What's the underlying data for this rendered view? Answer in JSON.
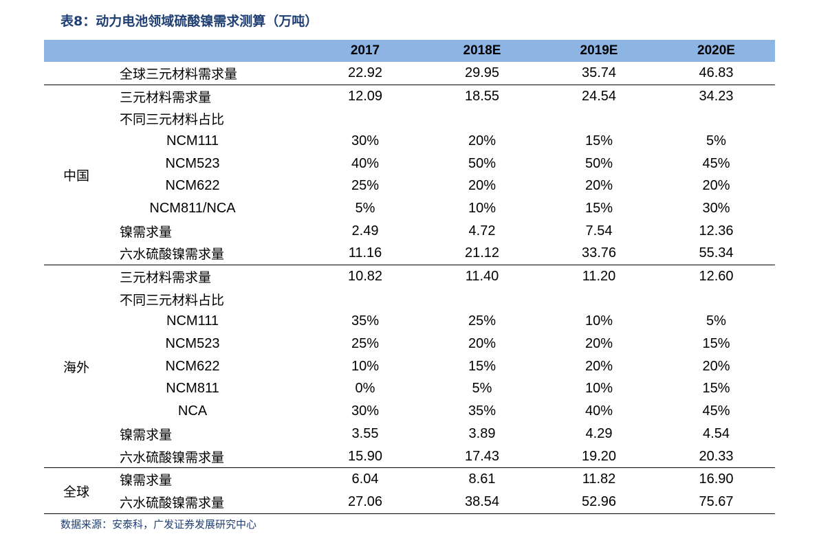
{
  "title": "表8：动力电池领域硫酸镍需求测算（万吨）",
  "headers": [
    "",
    "",
    "2017",
    "2018E",
    "2019E",
    "2020E"
  ],
  "rows": {
    "global_total": {
      "label": "全球三元材料需求量",
      "values": [
        "22.92",
        "29.95",
        "35.74",
        "46.83"
      ]
    },
    "china": {
      "group": "中国",
      "demand": {
        "label": "三元材料需求量",
        "values": [
          "12.09",
          "18.55",
          "24.54",
          "34.23"
        ]
      },
      "share_label": "不同三元材料占比",
      "ncm111": {
        "label": "NCM111",
        "values": [
          "30%",
          "20%",
          "15%",
          "5%"
        ]
      },
      "ncm523": {
        "label": "NCM523",
        "values": [
          "40%",
          "50%",
          "50%",
          "45%"
        ]
      },
      "ncm622": {
        "label": "NCM622",
        "values": [
          "25%",
          "20%",
          "20%",
          "20%"
        ]
      },
      "ncm811": {
        "label": "NCM811/NCA",
        "values": [
          "5%",
          "10%",
          "15%",
          "30%"
        ]
      },
      "nickel": {
        "label": "镍需求量",
        "values": [
          "2.49",
          "4.72",
          "7.54",
          "12.36"
        ]
      },
      "sulfate": {
        "label": "六水硫酸镍需求量",
        "values": [
          "11.16",
          "21.12",
          "33.76",
          "55.34"
        ]
      }
    },
    "overseas": {
      "group": "海外",
      "demand": {
        "label": "三元材料需求量",
        "values": [
          "10.82",
          "11.40",
          "11.20",
          "12.60"
        ]
      },
      "share_label": "不同三元材料占比",
      "ncm111": {
        "label": "NCM111",
        "values": [
          "35%",
          "25%",
          "10%",
          "5%"
        ]
      },
      "ncm523": {
        "label": "NCM523",
        "values": [
          "25%",
          "20%",
          "20%",
          "15%"
        ]
      },
      "ncm622": {
        "label": "NCM622",
        "values": [
          "10%",
          "15%",
          "20%",
          "20%"
        ]
      },
      "ncm811": {
        "label": "NCM811",
        "values": [
          "0%",
          "5%",
          "10%",
          "15%"
        ]
      },
      "nca": {
        "label": "NCA",
        "values": [
          "30%",
          "35%",
          "40%",
          "45%"
        ]
      },
      "nickel": {
        "label": "镍需求量",
        "values": [
          "3.55",
          "3.89",
          "4.29",
          "4.54"
        ]
      },
      "sulfate": {
        "label": "六水硫酸镍需求量",
        "values": [
          "15.90",
          "17.43",
          "19.20",
          "20.33"
        ]
      }
    },
    "global": {
      "group": "全球",
      "nickel": {
        "label": "镍需求量",
        "values": [
          "6.04",
          "8.61",
          "11.82",
          "16.90"
        ]
      },
      "sulfate": {
        "label": "六水硫酸镍需求量",
        "values": [
          "27.06",
          "38.54",
          "52.96",
          "75.67"
        ]
      }
    }
  },
  "source": "数据来源：安泰科，广发证券发展研究中心"
}
